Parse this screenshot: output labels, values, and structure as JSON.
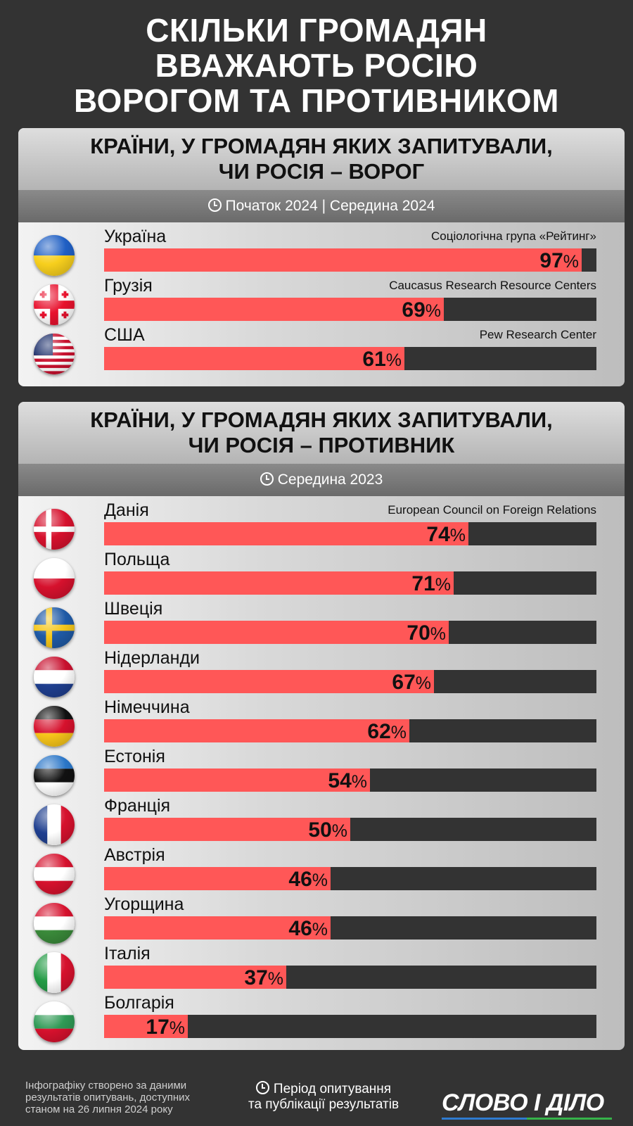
{
  "title": {
    "line1": "СКІЛЬКИ ГРОМАДЯН",
    "line2": "ВВАЖАЮТЬ РОСІЮ",
    "line3": "ВОРОГОМ ТА ПРОТИВНИКОМ"
  },
  "colors": {
    "bar_fill": "#ff5757",
    "bar_track": "#333333",
    "background": "#333333"
  },
  "chart_data": [
    {
      "type": "bar",
      "orientation": "horizontal",
      "title_line1": "КРАЇНИ, У ГРОМАДЯН ЯКИХ ЗАПИТУВАЛИ,",
      "title_line2": "ЧИ РОСІЯ – ВОРОГ",
      "period": "Початок 2024 | Середина 2024",
      "xlim": [
        0,
        100
      ],
      "unit": "%",
      "categories": [
        "Україна",
        "Грузія",
        "США"
      ],
      "values": [
        97,
        69,
        61
      ],
      "sources": [
        "Соціологічна група «Рейтинг»",
        "Caucasus Research Resource Centers",
        "Pew Research Center"
      ],
      "flags": [
        "ukraine",
        "georgia",
        "usa"
      ]
    },
    {
      "type": "bar",
      "orientation": "horizontal",
      "title_line1": "КРАЇНИ, У ГРОМАДЯН ЯКИХ ЗАПИТУВАЛИ,",
      "title_line2": "ЧИ РОСІЯ – ПРОТИВНИК",
      "period": "Середина 2023",
      "xlim": [
        0,
        100
      ],
      "unit": "%",
      "categories": [
        "Данія",
        "Польща",
        "Швеція",
        "Нідерланди",
        "Німеччина",
        "Естонія",
        "Франція",
        "Австрія",
        "Угорщина",
        "Італія",
        "Болгарія"
      ],
      "values": [
        74,
        71,
        70,
        67,
        62,
        54,
        50,
        46,
        46,
        37,
        17
      ],
      "sources": [
        "European Council on Foreign Relations",
        "",
        "",
        "",
        "",
        "",
        "",
        "",
        "",
        "",
        ""
      ],
      "flags": [
        "denmark",
        "poland",
        "sweden",
        "netherlands",
        "germany",
        "estonia",
        "france",
        "austria",
        "hungary",
        "italy",
        "bulgaria"
      ]
    }
  ],
  "footer": {
    "note_line1": "Інфографіку створено за даними",
    "note_line2": "результатів опитувань, доступних",
    "note_line3": "станом на 26 липня 2024 року",
    "legend_line1": "Період опитування",
    "legend_line2": "та публікації результатів",
    "logo": "СЛОВО І ДІЛО"
  }
}
